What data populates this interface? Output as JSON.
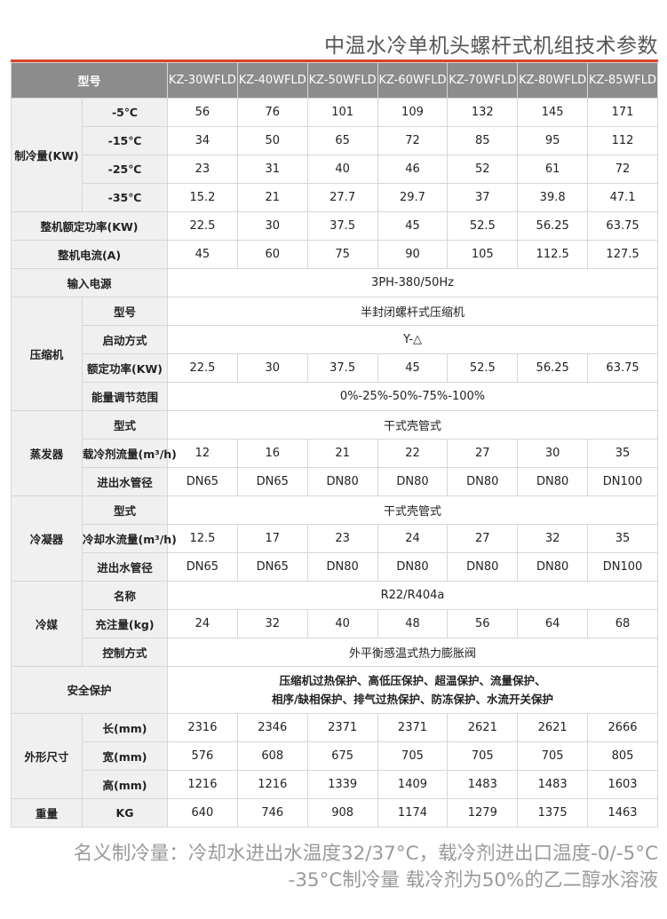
{
  "title": "中温水冷单机头螺杆式机组技术参数",
  "accent_color": "#d9442c",
  "header": {
    "label": "型号",
    "models": [
      "KZ-30WFLD",
      "KZ-40WFLD",
      "KZ-50WFLD",
      "KZ-60WFLD",
      "KZ-70WFLD",
      "KZ-80WFLD",
      "KZ-85WFLD"
    ]
  },
  "rows": [
    {
      "group": "制冷量(KW)",
      "span": 4,
      "label": "-5℃",
      "values": [
        "56",
        "76",
        "101",
        "109",
        "132",
        "145",
        "171"
      ]
    },
    {
      "label": "-15℃",
      "values": [
        "34",
        "50",
        "65",
        "72",
        "85",
        "95",
        "112"
      ]
    },
    {
      "label": "-25℃",
      "values": [
        "23",
        "31",
        "40",
        "46",
        "52",
        "61",
        "72"
      ]
    },
    {
      "label": "-35℃",
      "values": [
        "15.2",
        "21",
        "27.7",
        "29.7",
        "37",
        "39.8",
        "47.1"
      ]
    },
    {
      "full": "整机额定功率(KW)",
      "values": [
        "22.5",
        "30",
        "37.5",
        "45",
        "52.5",
        "56.25",
        "63.75"
      ]
    },
    {
      "full": "整机电流(A)",
      "values": [
        "45",
        "60",
        "75",
        "90",
        "105",
        "112.5",
        "127.5"
      ]
    },
    {
      "full": "输入电源",
      "merged": "3PH-380/50Hz"
    },
    {
      "group": "压缩机",
      "span": 4,
      "label": "型号",
      "merged": "半封闭螺杆式压缩机"
    },
    {
      "label": "启动方式",
      "merged": "Y-△"
    },
    {
      "label": "额定功率(KW)",
      "values": [
        "22.5",
        "30",
        "37.5",
        "45",
        "52.5",
        "56.25",
        "63.75"
      ]
    },
    {
      "label": "能量调节范围",
      "merged": "0%-25%-50%-75%-100%"
    },
    {
      "group": "蒸发器",
      "span": 3,
      "label": "型式",
      "merged": "干式壳管式"
    },
    {
      "label": "载冷剂流量(m³/h)",
      "values": [
        "12",
        "16",
        "21",
        "22",
        "27",
        "30",
        "35"
      ]
    },
    {
      "label": "进出水管径",
      "values": [
        "DN65",
        "DN65",
        "DN80",
        "DN80",
        "DN80",
        "DN80",
        "DN100"
      ]
    },
    {
      "group": "冷凝器",
      "span": 3,
      "label": "型式",
      "merged": "干式壳管式"
    },
    {
      "label": "冷却水流量(m³/h)",
      "values": [
        "12.5",
        "17",
        "23",
        "24",
        "27",
        "32",
        "35"
      ]
    },
    {
      "label": "进出水管径",
      "values": [
        "DN65",
        "DN65",
        "DN80",
        "DN80",
        "DN80",
        "DN80",
        "DN100"
      ]
    },
    {
      "group": "冷媒",
      "span": 3,
      "label": "名称",
      "merged": "R22/R404a"
    },
    {
      "label": "充注量(kg)",
      "values": [
        "24",
        "32",
        "40",
        "48",
        "56",
        "64",
        "68"
      ]
    },
    {
      "label": "控制方式",
      "merged": "外平衡感温式热力膨胀阀"
    },
    {
      "full": "安全保护",
      "merged": "压缩机过热保护、高低压保护、超温保护、流量保护、\n相序/缺相保护、排气过热保护、防冻保护、水流开关保护",
      "tall": true
    },
    {
      "group": "外形尺寸",
      "span": 3,
      "label": "长(mm)",
      "values": [
        "2316",
        "2346",
        "2371",
        "2371",
        "2621",
        "2621",
        "2666"
      ]
    },
    {
      "label": "宽(mm)",
      "values": [
        "576",
        "608",
        "675",
        "705",
        "705",
        "705",
        "805"
      ]
    },
    {
      "label": "高(mm)",
      "values": [
        "1216",
        "1216",
        "1339",
        "1409",
        "1483",
        "1483",
        "1603"
      ]
    },
    {
      "group": "重量",
      "span": 1,
      "label": "KG",
      "values": [
        "640",
        "746",
        "908",
        "1174",
        "1279",
        "1375",
        "1463"
      ]
    }
  ],
  "footnote": {
    "line1": "名义制冷量：冷却水进出水温度32/37°C，载冷剂进出口温度-0/-5°C",
    "line2": "-35°C制冷量   载冷剂为50%的乙二醇水溶液"
  }
}
